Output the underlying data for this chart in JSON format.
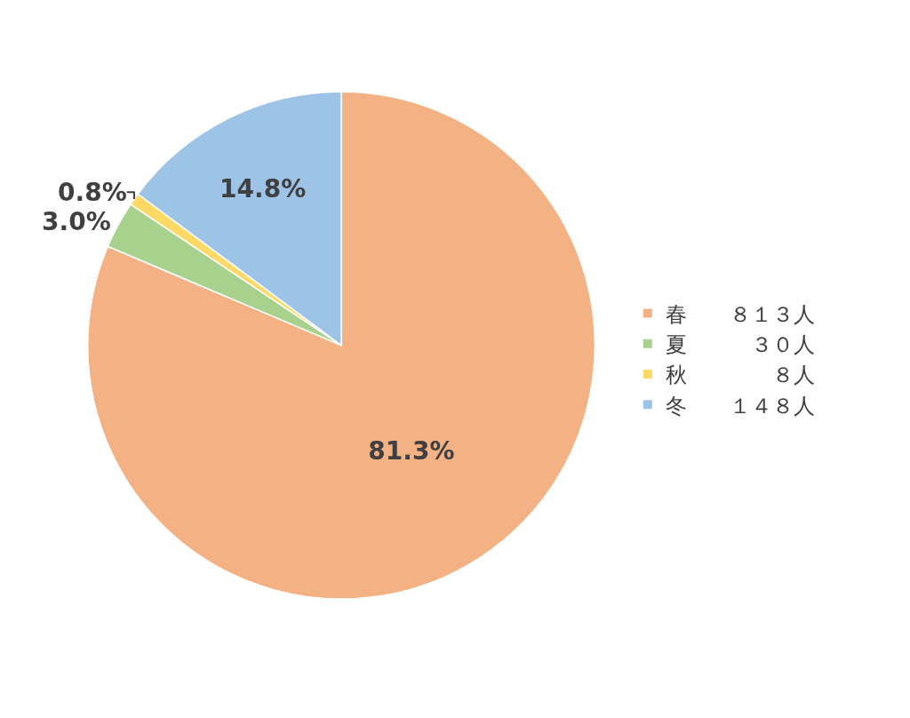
{
  "chart_data": {
    "type": "pie",
    "categories": [
      "春　　８１３人",
      "夏　　　３０人",
      "秋　　　　８人",
      "冬　　１４８人"
    ],
    "values": [
      81.3,
      3.0,
      0.8,
      14.8
    ],
    "value_labels": [
      "81.3%",
      "3.0%",
      "0.8%",
      "14.8%"
    ],
    "colors": [
      "#f4b183",
      "#a9d18e",
      "#ffd966",
      "#9dc3e6"
    ],
    "legend": "right"
  }
}
